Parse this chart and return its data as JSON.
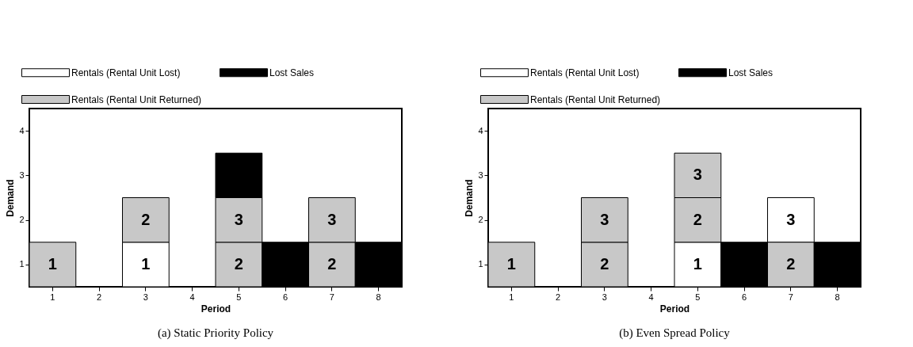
{
  "chart_data": [
    {
      "type": "bar",
      "title": "(a) Static Priority Policy",
      "xlabel": "Period",
      "ylabel": "Demand",
      "categories": [
        "1",
        "2",
        "3",
        "4",
        "5",
        "6",
        "7",
        "8"
      ],
      "ylim": [
        0.5,
        4.5
      ],
      "yticks": [
        1,
        2,
        3,
        4
      ],
      "legend": "top left",
      "grid": false,
      "series": [
        {
          "name": "Rentals (Rental Unit Lost)",
          "color": "#ffffff",
          "values": [
            null,
            null,
            1,
            null,
            null,
            null,
            null,
            null
          ],
          "base": [
            null,
            null,
            0.5,
            null,
            null,
            null,
            null,
            null
          ],
          "value_labels": [
            null,
            null,
            "1",
            null,
            null,
            null,
            null,
            null
          ]
        },
        {
          "name": "Rentals (Rental Unit Returned)",
          "color": "#c8c8c8",
          "values": [
            1,
            null,
            1,
            null,
            1,
            null,
            1,
            null
          ],
          "base": [
            0.5,
            null,
            1.5,
            null,
            0.5,
            null,
            0.5,
            null
          ],
          "value_labels": [
            "1",
            null,
            "2",
            null,
            "2",
            null,
            "2",
            null
          ]
        },
        {
          "color": "#c8c8c8",
          "values": [
            null,
            null,
            null,
            null,
            1,
            null,
            1,
            null
          ],
          "base": [
            null,
            null,
            null,
            null,
            1.5,
            null,
            1.5,
            null
          ],
          "value_labels": [
            null,
            null,
            null,
            null,
            "3",
            null,
            "3",
            null
          ]
        },
        {
          "name": "Lost Sales",
          "color": "#000000",
          "values": [
            null,
            null,
            null,
            null,
            1,
            1,
            null,
            1
          ],
          "base": [
            null,
            null,
            null,
            null,
            2.5,
            0.5,
            null,
            0.5
          ]
        }
      ]
    },
    {
      "type": "bar",
      "title": "(b) Even Spread Policy",
      "xlabel": "Period",
      "ylabel": "Demand",
      "categories": [
        "1",
        "2",
        "3",
        "4",
        "5",
        "6",
        "7",
        "8"
      ],
      "ylim": [
        0.5,
        4.5
      ],
      "yticks": [
        1,
        2,
        3,
        4
      ],
      "legend": "top left",
      "grid": false,
      "series": [
        {
          "name": "Rentals (Rental Unit Lost)",
          "color": "#ffffff",
          "values": [
            null,
            null,
            null,
            null,
            1,
            null,
            1,
            null
          ],
          "base": [
            null,
            null,
            null,
            null,
            0.5,
            null,
            1.5,
            null
          ],
          "value_labels": [
            null,
            null,
            null,
            null,
            "1",
            null,
            "3",
            null
          ]
        },
        {
          "name": "Rentals (Rental Unit Returned)",
          "color": "#c8c8c8",
          "values": [
            1,
            null,
            1,
            null,
            1,
            null,
            1,
            null
          ],
          "base": [
            0.5,
            null,
            0.5,
            null,
            1.5,
            null,
            0.5,
            null
          ],
          "value_labels": [
            "1",
            null,
            "2",
            null,
            "2",
            null,
            "2",
            null
          ]
        },
        {
          "color": "#c8c8c8",
          "values": [
            null,
            null,
            1,
            null,
            1,
            null,
            null,
            null
          ],
          "base": [
            null,
            null,
            1.5,
            null,
            2.5,
            null,
            null,
            null
          ],
          "value_labels": [
            null,
            null,
            "3",
            null,
            "3",
            null,
            null,
            null
          ]
        },
        {
          "name": "Lost Sales",
          "color": "#000000",
          "values": [
            null,
            null,
            null,
            null,
            null,
            1,
            null,
            1
          ],
          "base": [
            null,
            null,
            null,
            null,
            null,
            0.5,
            null,
            0.5
          ]
        }
      ]
    }
  ]
}
